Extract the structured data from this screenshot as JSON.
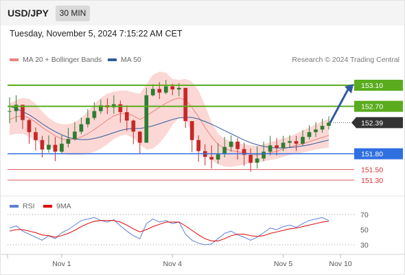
{
  "header": {
    "symbol": "USD/JPY",
    "timeframe": "30 MIN"
  },
  "timestamp": "Tuesday, November 5, 2024 7:15:22 AM CET",
  "legend": {
    "bollinger": {
      "label": "MA 20 + Bollinger Bands",
      "color": "#f08080"
    },
    "ma50": {
      "label": "MA 50",
      "color": "#2f5a9e"
    },
    "rsi": {
      "label": "RSI",
      "color": "#5b7fd6"
    },
    "rsi_ma": {
      "label": "9MA",
      "color": "#e00000"
    }
  },
  "credit": "Research © 2024 Trading Central",
  "chart_data": [
    {
      "type": "candlestick",
      "title": "USD/JPY 30 MIN",
      "ylim": [
        151.0,
        153.4
      ],
      "x_ticks": [
        "Nov 1",
        "Nov 4",
        "Nov 5",
        "Nov 10"
      ],
      "series": [
        {
          "name": "USD/JPY",
          "close": [
            152.61,
            152.73,
            152.44,
            152.21,
            152.06,
            151.88,
            151.97,
            151.84,
            151.99,
            152.08,
            152.22,
            152.36,
            152.48,
            152.61,
            152.72,
            152.68,
            152.74,
            152.59,
            152.43,
            152.22,
            152.01,
            152.91,
            153.03,
            152.96,
            153.08,
            153.02,
            153.05,
            152.42,
            152.06,
            151.85,
            151.74,
            151.69,
            151.79,
            151.93,
            152.03,
            151.89,
            151.78,
            151.63,
            151.71,
            151.84,
            151.96,
            151.91,
            152.01,
            152.04,
            151.99,
            152.12,
            152.21,
            152.26,
            152.33,
            152.39
          ],
          "wick_high": [
            152.87,
            152.91,
            152.72,
            152.46,
            152.3,
            152.14,
            152.15,
            152.12,
            152.15,
            152.29,
            152.4,
            152.49,
            152.65,
            152.78,
            152.83,
            152.85,
            152.91,
            152.81,
            152.72,
            152.45,
            152.23,
            153.05,
            153.12,
            153.16,
            153.2,
            153.13,
            153.14,
            152.65,
            152.35,
            152.15,
            151.98,
            151.96,
            152.0,
            152.12,
            152.15,
            152.1,
            152.01,
            151.9,
            151.94,
            152.03,
            152.14,
            152.1,
            152.14,
            152.15,
            152.14,
            152.25,
            152.34,
            152.4,
            152.46,
            152.51
          ],
          "wick_low": [
            152.38,
            152.4,
            152.27,
            151.99,
            151.86,
            151.73,
            151.82,
            151.66,
            151.81,
            151.92,
            152.05,
            152.17,
            152.3,
            152.44,
            152.56,
            152.55,
            152.56,
            152.39,
            152.23,
            151.98,
            151.8,
            152.72,
            152.89,
            152.84,
            152.93,
            152.91,
            152.89,
            152.29,
            151.83,
            151.65,
            151.58,
            151.52,
            151.61,
            151.73,
            151.84,
            151.69,
            151.57,
            151.46,
            151.52,
            151.66,
            151.77,
            151.77,
            151.85,
            151.91,
            151.85,
            151.95,
            152.07,
            152.12,
            152.2,
            152.26
          ]
        },
        {
          "name": "MA 20",
          "values": [
            152.45,
            152.5,
            152.52,
            152.48,
            152.4,
            152.3,
            152.22,
            152.14,
            152.08,
            152.06,
            152.08,
            152.12,
            152.18,
            152.26,
            152.35,
            152.44,
            152.52,
            152.56,
            152.57,
            152.52,
            152.45,
            152.52,
            152.6,
            152.68,
            152.76,
            152.82,
            152.86,
            152.82,
            152.68,
            152.5,
            152.3,
            152.12,
            151.98,
            151.9,
            151.86,
            151.84,
            151.82,
            151.8,
            151.78,
            151.79,
            151.82,
            151.85,
            151.89,
            151.93,
            151.96,
            151.99,
            152.03,
            152.07,
            152.11,
            152.15
          ]
        },
        {
          "name": "Bollinger upper",
          "values": [
            152.75,
            152.82,
            152.86,
            152.84,
            152.75,
            152.6,
            152.48,
            152.4,
            152.36,
            152.36,
            152.4,
            152.48,
            152.6,
            152.74,
            152.86,
            152.94,
            152.98,
            153.0,
            153.0,
            152.96,
            152.94,
            153.12,
            153.3,
            153.36,
            153.34,
            153.22,
            153.2,
            153.22,
            153.16,
            153.0,
            152.72,
            152.4,
            152.18,
            152.08,
            152.04,
            152.0,
            151.98,
            151.96,
            151.95,
            151.98,
            152.02,
            152.05,
            152.09,
            152.13,
            152.18,
            152.24,
            152.3,
            152.36,
            152.42,
            152.46
          ]
        },
        {
          "name": "Bollinger lower",
          "values": [
            152.15,
            152.18,
            152.18,
            152.12,
            152.05,
            151.98,
            151.94,
            151.88,
            151.82,
            151.78,
            151.78,
            151.78,
            151.8,
            151.84,
            151.9,
            151.98,
            152.08,
            152.14,
            152.16,
            152.1,
            151.98,
            151.88,
            151.9,
            152.0,
            152.15,
            152.35,
            152.48,
            152.45,
            152.2,
            151.96,
            151.8,
            151.68,
            151.6,
            151.56,
            151.55,
            151.57,
            151.6,
            151.62,
            151.64,
            151.66,
            151.68,
            151.7,
            151.74,
            151.78,
            151.8,
            151.82,
            151.85,
            151.88,
            151.9,
            151.92
          ]
        },
        {
          "name": "MA 50",
          "values": [
            152.7,
            152.66,
            152.6,
            152.54,
            152.46,
            152.37,
            152.29,
            152.22,
            152.16,
            152.11,
            152.08,
            152.07,
            152.07,
            152.09,
            152.12,
            152.16,
            152.2,
            152.24,
            152.27,
            152.28,
            152.28,
            152.3,
            152.33,
            152.37,
            152.41,
            152.45,
            152.48,
            152.49,
            152.49,
            152.46,
            152.41,
            152.36,
            152.3,
            152.24,
            152.18,
            152.12,
            152.06,
            152.01,
            151.97,
            151.94,
            151.92,
            151.91,
            151.91,
            151.92,
            151.93,
            151.95,
            151.97,
            152.0,
            152.03,
            152.06
          ]
        }
      ],
      "levels": [
        {
          "label": "153.10",
          "value": 153.1,
          "color": "#5aac1e",
          "style": "resistance"
        },
        {
          "label": "152.70",
          "value": 152.7,
          "color": "#5aac1e",
          "style": "resistance"
        },
        {
          "label": "152.39",
          "value": 152.39,
          "color": "#333333",
          "style": "last-price"
        },
        {
          "label": "151.80",
          "value": 151.8,
          "color": "#2f6fe0",
          "style": "pivot"
        },
        {
          "label": "151.50",
          "value": 151.5,
          "color": "#e05555",
          "style": "support"
        },
        {
          "label": "151.30",
          "value": 151.3,
          "color": "#e05555",
          "style": "support"
        }
      ],
      "projection": {
        "from": 152.39,
        "to": 153.1,
        "color": "#2f5a9e"
      }
    },
    {
      "type": "line",
      "title": "RSI",
      "ylim": [
        20,
        80
      ],
      "y_ticks": [
        "70",
        "50",
        "30"
      ],
      "series": [
        {
          "name": "RSI",
          "values": [
            52,
            55,
            48,
            44,
            40,
            36,
            42,
            38,
            46,
            50,
            56,
            62,
            64,
            66,
            62,
            60,
            63,
            55,
            48,
            42,
            38,
            58,
            64,
            60,
            62,
            58,
            60,
            44,
            36,
            32,
            30,
            31,
            38,
            45,
            48,
            43,
            40,
            36,
            40,
            46,
            52,
            50,
            54,
            56,
            53,
            58,
            62,
            64,
            66,
            62
          ]
        },
        {
          "name": "9MA",
          "values": [
            48,
            50,
            50,
            48,
            46,
            43,
            42,
            40,
            42,
            45,
            49,
            54,
            58,
            61,
            62,
            62,
            62,
            60,
            56,
            51,
            47,
            50,
            54,
            57,
            60,
            60,
            60,
            55,
            49,
            43,
            38,
            35,
            35,
            38,
            42,
            44,
            44,
            42,
            41,
            42,
            45,
            47,
            49,
            51,
            52,
            54,
            56,
            58,
            60,
            61
          ]
        }
      ]
    }
  ]
}
